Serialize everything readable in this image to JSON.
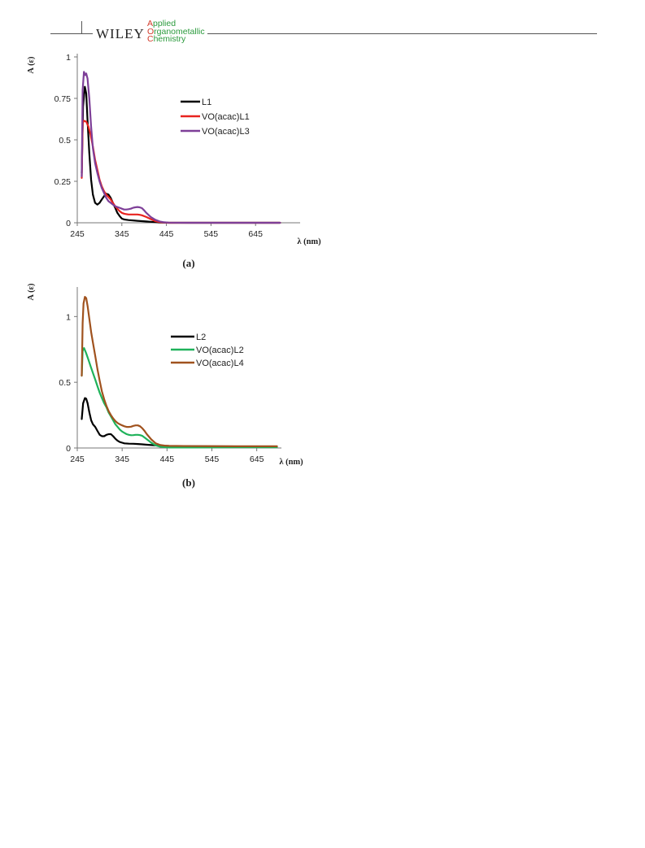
{
  "header": {
    "publisher": "WILEY",
    "journal_lines": [
      {
        "cap": "A",
        "rest": "pplied"
      },
      {
        "cap": "O",
        "rest": "rganometallic"
      },
      {
        "cap": "C",
        "rest": "hemistry"
      }
    ]
  },
  "chart_data": [
    {
      "type": "line",
      "panel_label": "(a)",
      "xlabel": "λ (nm)",
      "ylabel": "A (ε)",
      "xlim": [
        245,
        745
      ],
      "ylim": [
        0,
        1
      ],
      "xticks": [
        245,
        345,
        445,
        545,
        645
      ],
      "yticks": [
        0,
        0.25,
        0.5,
        0.75,
        1
      ],
      "ytick_labels": [
        "0",
        "0.25",
        "0.5",
        "0.75",
        "1"
      ],
      "grid": false,
      "legend_position": "upper-right",
      "series": [
        {
          "name": "L1",
          "color": "#000000",
          "x": [
            255,
            258,
            262,
            265,
            268,
            272,
            276,
            280,
            285,
            290,
            295,
            300,
            305,
            310,
            315,
            320,
            325,
            330,
            335,
            340,
            345,
            350,
            355,
            360,
            370,
            380,
            390,
            400,
            410,
            420,
            430,
            440,
            450,
            500,
            600,
            700
          ],
          "y": [
            0.3,
            0.7,
            0.82,
            0.78,
            0.62,
            0.42,
            0.26,
            0.17,
            0.12,
            0.11,
            0.12,
            0.14,
            0.16,
            0.175,
            0.17,
            0.15,
            0.12,
            0.09,
            0.06,
            0.04,
            0.025,
            0.02,
            0.018,
            0.016,
            0.014,
            0.012,
            0.01,
            0.008,
            0.006,
            0.004,
            0.002,
            0.001,
            0,
            0,
            0,
            0
          ]
        },
        {
          "name": "VO(acac)L1",
          "color": "#e8231f",
          "x": [
            255,
            257,
            260,
            265,
            270,
            275,
            280,
            285,
            290,
            295,
            300,
            305,
            310,
            315,
            320,
            325,
            330,
            335,
            340,
            345,
            350,
            355,
            360,
            365,
            370,
            375,
            380,
            385,
            390,
            400,
            410,
            420,
            430,
            440,
            450,
            500,
            600,
            700
          ],
          "y": [
            0.27,
            0.6,
            0.615,
            0.61,
            0.58,
            0.53,
            0.46,
            0.38,
            0.32,
            0.26,
            0.22,
            0.19,
            0.17,
            0.155,
            0.14,
            0.12,
            0.1,
            0.085,
            0.07,
            0.06,
            0.055,
            0.052,
            0.05,
            0.05,
            0.05,
            0.05,
            0.05,
            0.048,
            0.045,
            0.035,
            0.022,
            0.01,
            0.004,
            0.002,
            0,
            0,
            0,
            0
          ]
        },
        {
          "name": "VO(acac)L3",
          "color": "#7e3f98",
          "x": [
            255,
            257,
            260,
            263,
            265,
            268,
            272,
            276,
            280,
            285,
            290,
            295,
            300,
            305,
            310,
            315,
            320,
            325,
            330,
            335,
            340,
            345,
            350,
            355,
            360,
            365,
            370,
            375,
            380,
            385,
            390,
            395,
            400,
            410,
            420,
            430,
            440,
            450,
            500,
            600,
            700
          ],
          "y": [
            0.28,
            0.8,
            0.91,
            0.89,
            0.9,
            0.87,
            0.75,
            0.58,
            0.45,
            0.36,
            0.3,
            0.25,
            0.21,
            0.18,
            0.15,
            0.13,
            0.12,
            0.11,
            0.1,
            0.095,
            0.09,
            0.085,
            0.08,
            0.08,
            0.082,
            0.085,
            0.09,
            0.093,
            0.095,
            0.093,
            0.088,
            0.075,
            0.06,
            0.035,
            0.018,
            0.008,
            0.003,
            0.001,
            0,
            0,
            0
          ]
        }
      ]
    },
    {
      "type": "line",
      "panel_label": "(b)",
      "xlabel": "λ (nm)",
      "ylabel": "A (ε)",
      "xlim": [
        245,
        700
      ],
      "ylim": [
        0,
        1.2
      ],
      "xticks": [
        245,
        345,
        445,
        545,
        645
      ],
      "yticks": [
        0,
        0.5,
        1
      ],
      "ytick_labels": [
        "0",
        "0.5",
        "1"
      ],
      "grid": false,
      "legend_position": "upper-right",
      "series": [
        {
          "name": "L2",
          "color": "#000000",
          "x": [
            255,
            258,
            262,
            265,
            268,
            272,
            276,
            280,
            285,
            290,
            295,
            300,
            305,
            310,
            315,
            320,
            325,
            330,
            335,
            340,
            345,
            350,
            360,
            370,
            380,
            390,
            400,
            410,
            420,
            430,
            440,
            450,
            500,
            600,
            690
          ],
          "y": [
            0.22,
            0.34,
            0.38,
            0.375,
            0.34,
            0.27,
            0.21,
            0.18,
            0.16,
            0.13,
            0.1,
            0.09,
            0.09,
            0.1,
            0.105,
            0.105,
            0.09,
            0.07,
            0.055,
            0.045,
            0.04,
            0.035,
            0.033,
            0.032,
            0.03,
            0.028,
            0.025,
            0.022,
            0.02,
            0.018,
            0.016,
            0.015,
            0.013,
            0.012,
            0.012
          ]
        },
        {
          "name": "VO(acac)L2",
          "color": "#1fb25a",
          "x": [
            255,
            257,
            260,
            265,
            270,
            275,
            280,
            285,
            290,
            295,
            300,
            305,
            310,
            315,
            320,
            325,
            330,
            335,
            340,
            345,
            350,
            355,
            360,
            365,
            370,
            375,
            380,
            385,
            390,
            395,
            400,
            410,
            420,
            430,
            440,
            450,
            500,
            600,
            690
          ],
          "y": [
            0.55,
            0.74,
            0.76,
            0.72,
            0.67,
            0.62,
            0.57,
            0.52,
            0.47,
            0.42,
            0.38,
            0.34,
            0.31,
            0.27,
            0.24,
            0.21,
            0.18,
            0.16,
            0.14,
            0.125,
            0.115,
            0.105,
            0.1,
            0.097,
            0.098,
            0.1,
            0.1,
            0.098,
            0.092,
            0.08,
            0.066,
            0.04,
            0.02,
            0.01,
            0.006,
            0.004,
            0.004,
            0.006,
            0.006
          ]
        },
        {
          "name": "VO(acac)L4",
          "color": "#a0521e",
          "x": [
            255,
            257,
            259,
            262,
            265,
            268,
            272,
            276,
            280,
            285,
            290,
            295,
            300,
            305,
            310,
            315,
            320,
            325,
            330,
            335,
            340,
            345,
            350,
            355,
            360,
            365,
            370,
            375,
            380,
            385,
            390,
            395,
            400,
            410,
            420,
            430,
            440,
            450,
            500,
            600,
            690
          ],
          "y": [
            0.55,
            0.95,
            1.1,
            1.15,
            1.14,
            1.08,
            0.98,
            0.88,
            0.8,
            0.7,
            0.6,
            0.51,
            0.43,
            0.37,
            0.32,
            0.28,
            0.25,
            0.225,
            0.205,
            0.19,
            0.18,
            0.172,
            0.165,
            0.16,
            0.16,
            0.162,
            0.168,
            0.172,
            0.172,
            0.165,
            0.15,
            0.13,
            0.105,
            0.065,
            0.035,
            0.022,
            0.018,
            0.016,
            0.014,
            0.013,
            0.013
          ]
        }
      ]
    }
  ]
}
